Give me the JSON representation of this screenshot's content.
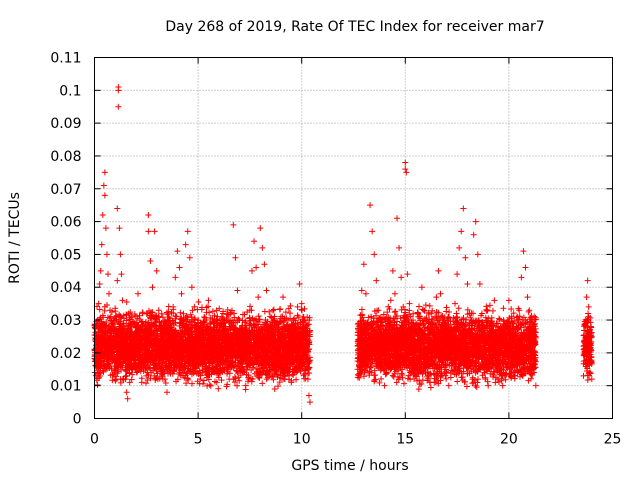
{
  "chart_data": {
    "type": "scatter",
    "title": "Day 268 of 2019, Rate Of TEC Index for receiver mar7",
    "xlabel": "GPS time / hours",
    "ylabel": "ROTI / TECUs",
    "xlim": [
      0,
      25
    ],
    "ylim": [
      0,
      0.11
    ],
    "xticks": [
      0,
      5,
      10,
      15,
      20,
      25
    ],
    "xtick_labels": [
      "0",
      "5",
      "10",
      "15",
      "20",
      "25"
    ],
    "yticks": [
      0,
      0.01,
      0.02,
      0.03,
      0.04,
      0.05,
      0.06,
      0.07,
      0.08,
      0.09,
      0.1,
      0.11
    ],
    "ytick_labels": [
      "0",
      "0.01",
      "0.02",
      "0.03",
      "0.04",
      "0.05",
      "0.06",
      "0.07",
      "0.08",
      "0.09",
      "0.1",
      "0.11"
    ],
    "grid": true,
    "marker": "+",
    "color": "#ff0000",
    "series": [
      {
        "name": "ROTI",
        "points": [
          [
            0.0,
            0.021
          ],
          [
            0.05,
            0.018
          ],
          [
            0.1,
            0.024
          ],
          [
            0.15,
            0.03
          ],
          [
            0.2,
            0.035
          ],
          [
            0.25,
            0.041
          ],
          [
            0.3,
            0.045
          ],
          [
            0.35,
            0.053
          ],
          [
            0.4,
            0.062
          ],
          [
            0.45,
            0.071
          ],
          [
            0.5,
            0.075
          ],
          [
            0.5,
            0.068
          ],
          [
            0.55,
            0.058
          ],
          [
            0.6,
            0.05
          ],
          [
            0.65,
            0.044
          ],
          [
            0.7,
            0.038
          ],
          [
            0.75,
            0.033
          ],
          [
            0.8,
            0.027
          ],
          [
            0.85,
            0.022
          ],
          [
            0.9,
            0.018
          ],
          [
            0.95,
            0.015
          ],
          [
            1.0,
            0.022
          ],
          [
            1.05,
            0.03
          ],
          [
            1.1,
            0.042
          ],
          [
            1.1,
            0.064
          ],
          [
            1.15,
            0.101
          ],
          [
            1.15,
            0.1
          ],
          [
            1.15,
            0.095
          ],
          [
            1.2,
            0.058
          ],
          [
            1.25,
            0.05
          ],
          [
            1.3,
            0.044
          ],
          [
            1.35,
            0.036
          ],
          [
            1.4,
            0.029
          ],
          [
            1.45,
            0.02
          ],
          [
            1.5,
            0.012
          ],
          [
            1.55,
            0.008
          ],
          [
            1.6,
            0.006
          ],
          [
            1.7,
            0.011
          ],
          [
            1.8,
            0.018
          ],
          [
            1.9,
            0.025
          ],
          [
            2.0,
            0.031
          ],
          [
            2.1,
            0.038
          ],
          [
            2.2,
            0.03
          ],
          [
            2.3,
            0.022
          ],
          [
            2.4,
            0.016
          ],
          [
            2.5,
            0.013
          ],
          [
            2.6,
            0.062
          ],
          [
            2.6,
            0.057
          ],
          [
            2.7,
            0.048
          ],
          [
            2.8,
            0.04
          ],
          [
            2.9,
            0.057
          ],
          [
            3.0,
            0.045
          ],
          [
            3.1,
            0.033
          ],
          [
            3.2,
            0.024
          ],
          [
            3.3,
            0.017
          ],
          [
            3.4,
            0.012
          ],
          [
            3.5,
            0.008
          ],
          [
            3.6,
            0.016
          ],
          [
            3.7,
            0.025
          ],
          [
            3.8,
            0.034
          ],
          [
            3.9,
            0.043
          ],
          [
            4.0,
            0.051
          ],
          [
            4.1,
            0.046
          ],
          [
            4.2,
            0.038
          ],
          [
            4.3,
            0.029
          ],
          [
            4.4,
            0.053
          ],
          [
            4.5,
            0.057
          ],
          [
            4.6,
            0.049
          ],
          [
            4.7,
            0.04
          ],
          [
            4.8,
            0.03
          ],
          [
            4.9,
            0.022
          ],
          [
            5.0,
            0.016
          ],
          [
            5.1,
            0.012
          ],
          [
            5.2,
            0.017
          ],
          [
            5.3,
            0.024
          ],
          [
            5.4,
            0.03
          ],
          [
            5.5,
            0.036
          ],
          [
            5.6,
            0.027
          ],
          [
            5.7,
            0.02
          ],
          [
            5.8,
            0.014
          ],
          [
            5.9,
            0.011
          ],
          [
            6.0,
            0.018
          ],
          [
            6.1,
            0.026
          ],
          [
            6.2,
            0.032
          ],
          [
            6.3,
            0.024
          ],
          [
            6.4,
            0.017
          ],
          [
            6.5,
            0.012
          ],
          [
            6.6,
            0.021
          ],
          [
            6.7,
            0.059
          ],
          [
            6.8,
            0.049
          ],
          [
            6.9,
            0.039
          ],
          [
            7.0,
            0.03
          ],
          [
            7.1,
            0.022
          ],
          [
            7.2,
            0.015
          ],
          [
            7.3,
            0.01
          ],
          [
            7.4,
            0.018
          ],
          [
            7.5,
            0.033
          ],
          [
            7.6,
            0.045
          ],
          [
            7.7,
            0.054
          ],
          [
            7.8,
            0.046
          ],
          [
            7.9,
            0.037
          ],
          [
            8.0,
            0.058
          ],
          [
            8.1,
            0.052
          ],
          [
            8.2,
            0.047
          ],
          [
            8.3,
            0.039
          ],
          [
            8.4,
            0.028
          ],
          [
            8.5,
            0.019
          ],
          [
            8.6,
            0.013
          ],
          [
            8.7,
            0.009
          ],
          [
            8.8,
            0.016
          ],
          [
            8.9,
            0.024
          ],
          [
            9.0,
            0.031
          ],
          [
            9.1,
            0.037
          ],
          [
            9.2,
            0.03
          ],
          [
            9.3,
            0.022
          ],
          [
            9.4,
            0.015
          ],
          [
            9.5,
            0.011
          ],
          [
            9.6,
            0.019
          ],
          [
            9.7,
            0.027
          ],
          [
            9.8,
            0.034
          ],
          [
            9.9,
            0.041
          ],
          [
            10.0,
            0.035
          ],
          [
            10.1,
            0.027
          ],
          [
            10.2,
            0.019
          ],
          [
            10.3,
            0.012
          ],
          [
            10.35,
            0.007
          ],
          [
            10.4,
            0.005
          ],
          [
            12.7,
            0.015
          ],
          [
            12.8,
            0.024
          ],
          [
            12.9,
            0.039
          ],
          [
            13.0,
            0.047
          ],
          [
            13.1,
            0.038
          ],
          [
            13.2,
            0.029
          ],
          [
            13.3,
            0.065
          ],
          [
            13.4,
            0.057
          ],
          [
            13.5,
            0.05
          ],
          [
            13.6,
            0.042
          ],
          [
            13.7,
            0.033
          ],
          [
            13.8,
            0.024
          ],
          [
            13.9,
            0.016
          ],
          [
            14.0,
            0.01
          ],
          [
            14.1,
            0.018
          ],
          [
            14.2,
            0.027
          ],
          [
            14.3,
            0.036
          ],
          [
            14.4,
            0.045
          ],
          [
            14.5,
            0.038
          ],
          [
            14.6,
            0.061
          ],
          [
            14.7,
            0.052
          ],
          [
            14.8,
            0.043
          ],
          [
            14.9,
            0.034
          ],
          [
            15.0,
            0.078
          ],
          [
            15.0,
            0.076
          ],
          [
            15.05,
            0.075
          ],
          [
            15.1,
            0.044
          ],
          [
            15.2,
            0.035
          ],
          [
            15.3,
            0.026
          ],
          [
            15.4,
            0.018
          ],
          [
            15.5,
            0.013
          ],
          [
            15.6,
            0.022
          ],
          [
            15.7,
            0.031
          ],
          [
            15.8,
            0.04
          ],
          [
            15.9,
            0.033
          ],
          [
            16.0,
            0.024
          ],
          [
            16.1,
            0.016
          ],
          [
            16.2,
            0.011
          ],
          [
            16.3,
            0.02
          ],
          [
            16.4,
            0.029
          ],
          [
            16.5,
            0.037
          ],
          [
            16.6,
            0.045
          ],
          [
            16.7,
            0.038
          ],
          [
            16.8,
            0.03
          ],
          [
            16.9,
            0.021
          ],
          [
            17.0,
            0.014
          ],
          [
            17.1,
            0.01
          ],
          [
            17.2,
            0.018
          ],
          [
            17.3,
            0.027
          ],
          [
            17.4,
            0.035
          ],
          [
            17.5,
            0.044
          ],
          [
            17.6,
            0.052
          ],
          [
            17.7,
            0.057
          ],
          [
            17.8,
            0.064
          ],
          [
            17.9,
            0.049
          ],
          [
            18.0,
            0.041
          ],
          [
            18.1,
            0.032
          ],
          [
            18.2,
            0.024
          ],
          [
            18.3,
            0.056
          ],
          [
            18.4,
            0.06
          ],
          [
            18.5,
            0.05
          ],
          [
            18.6,
            0.041
          ],
          [
            18.7,
            0.032
          ],
          [
            18.8,
            0.023
          ],
          [
            18.9,
            0.015
          ],
          [
            19.0,
            0.01
          ],
          [
            19.1,
            0.018
          ],
          [
            19.2,
            0.027
          ],
          [
            19.3,
            0.036
          ],
          [
            19.4,
            0.029
          ],
          [
            19.5,
            0.021
          ],
          [
            19.6,
            0.014
          ],
          [
            19.7,
            0.01
          ],
          [
            19.8,
            0.019
          ],
          [
            19.9,
            0.028
          ],
          [
            20.0,
            0.036
          ],
          [
            20.1,
            0.027
          ],
          [
            20.2,
            0.019
          ],
          [
            20.3,
            0.013
          ],
          [
            20.4,
            0.023
          ],
          [
            20.5,
            0.033
          ],
          [
            20.6,
            0.043
          ],
          [
            20.7,
            0.051
          ],
          [
            20.8,
            0.046
          ],
          [
            20.9,
            0.037
          ],
          [
            21.0,
            0.028
          ],
          [
            21.1,
            0.02
          ],
          [
            21.2,
            0.014
          ],
          [
            21.3,
            0.01
          ],
          [
            23.6,
            0.013
          ],
          [
            23.65,
            0.02
          ],
          [
            23.7,
            0.029
          ],
          [
            23.75,
            0.037
          ],
          [
            23.8,
            0.042
          ],
          [
            23.85,
            0.034
          ],
          [
            23.9,
            0.025
          ],
          [
            23.95,
            0.017
          ],
          [
            24.0,
            0.012
          ]
        ],
        "bands": [
          {
            "x_start": 0.0,
            "x_end": 10.4,
            "y_low": 0.008,
            "y_high": 0.036
          },
          {
            "x_start": 12.7,
            "x_end": 21.3,
            "y_low": 0.008,
            "y_high": 0.036
          },
          {
            "x_start": 23.6,
            "x_end": 24.0,
            "y_low": 0.01,
            "y_high": 0.035
          }
        ]
      }
    ]
  }
}
